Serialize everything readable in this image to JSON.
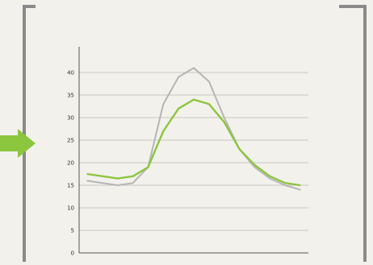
{
  "chart_data": {
    "type": "line",
    "title": "",
    "xlabel": "",
    "ylabel": "",
    "y_unit": "",
    "x": [
      0,
      1,
      2,
      3,
      4,
      5,
      6,
      7,
      8,
      9,
      10,
      11,
      12,
      13,
      14
    ],
    "x_tick_labels": [
      "",
      "",
      "",
      "",
      "",
      "",
      "",
      "",
      "",
      "",
      "",
      "",
      "",
      "",
      ""
    ],
    "y_ticks": [
      0,
      5,
      10,
      15,
      20,
      25,
      30,
      35,
      40
    ],
    "ylim": [
      0,
      45
    ],
    "series": [
      {
        "name": "",
        "color": "#b5b5b5",
        "values": [
          16,
          15.5,
          15,
          15.5,
          19,
          33,
          39,
          41,
          38,
          30,
          23,
          19,
          16.5,
          15,
          14
        ]
      },
      {
        "name": "",
        "color": "#8cc63f",
        "values": [
          17.5,
          17,
          16.5,
          17,
          19,
          27,
          32,
          34,
          33,
          29,
          23,
          19.5,
          17,
          15.5,
          15
        ]
      }
    ],
    "grid": true,
    "legend": "annotations near curves"
  }
}
